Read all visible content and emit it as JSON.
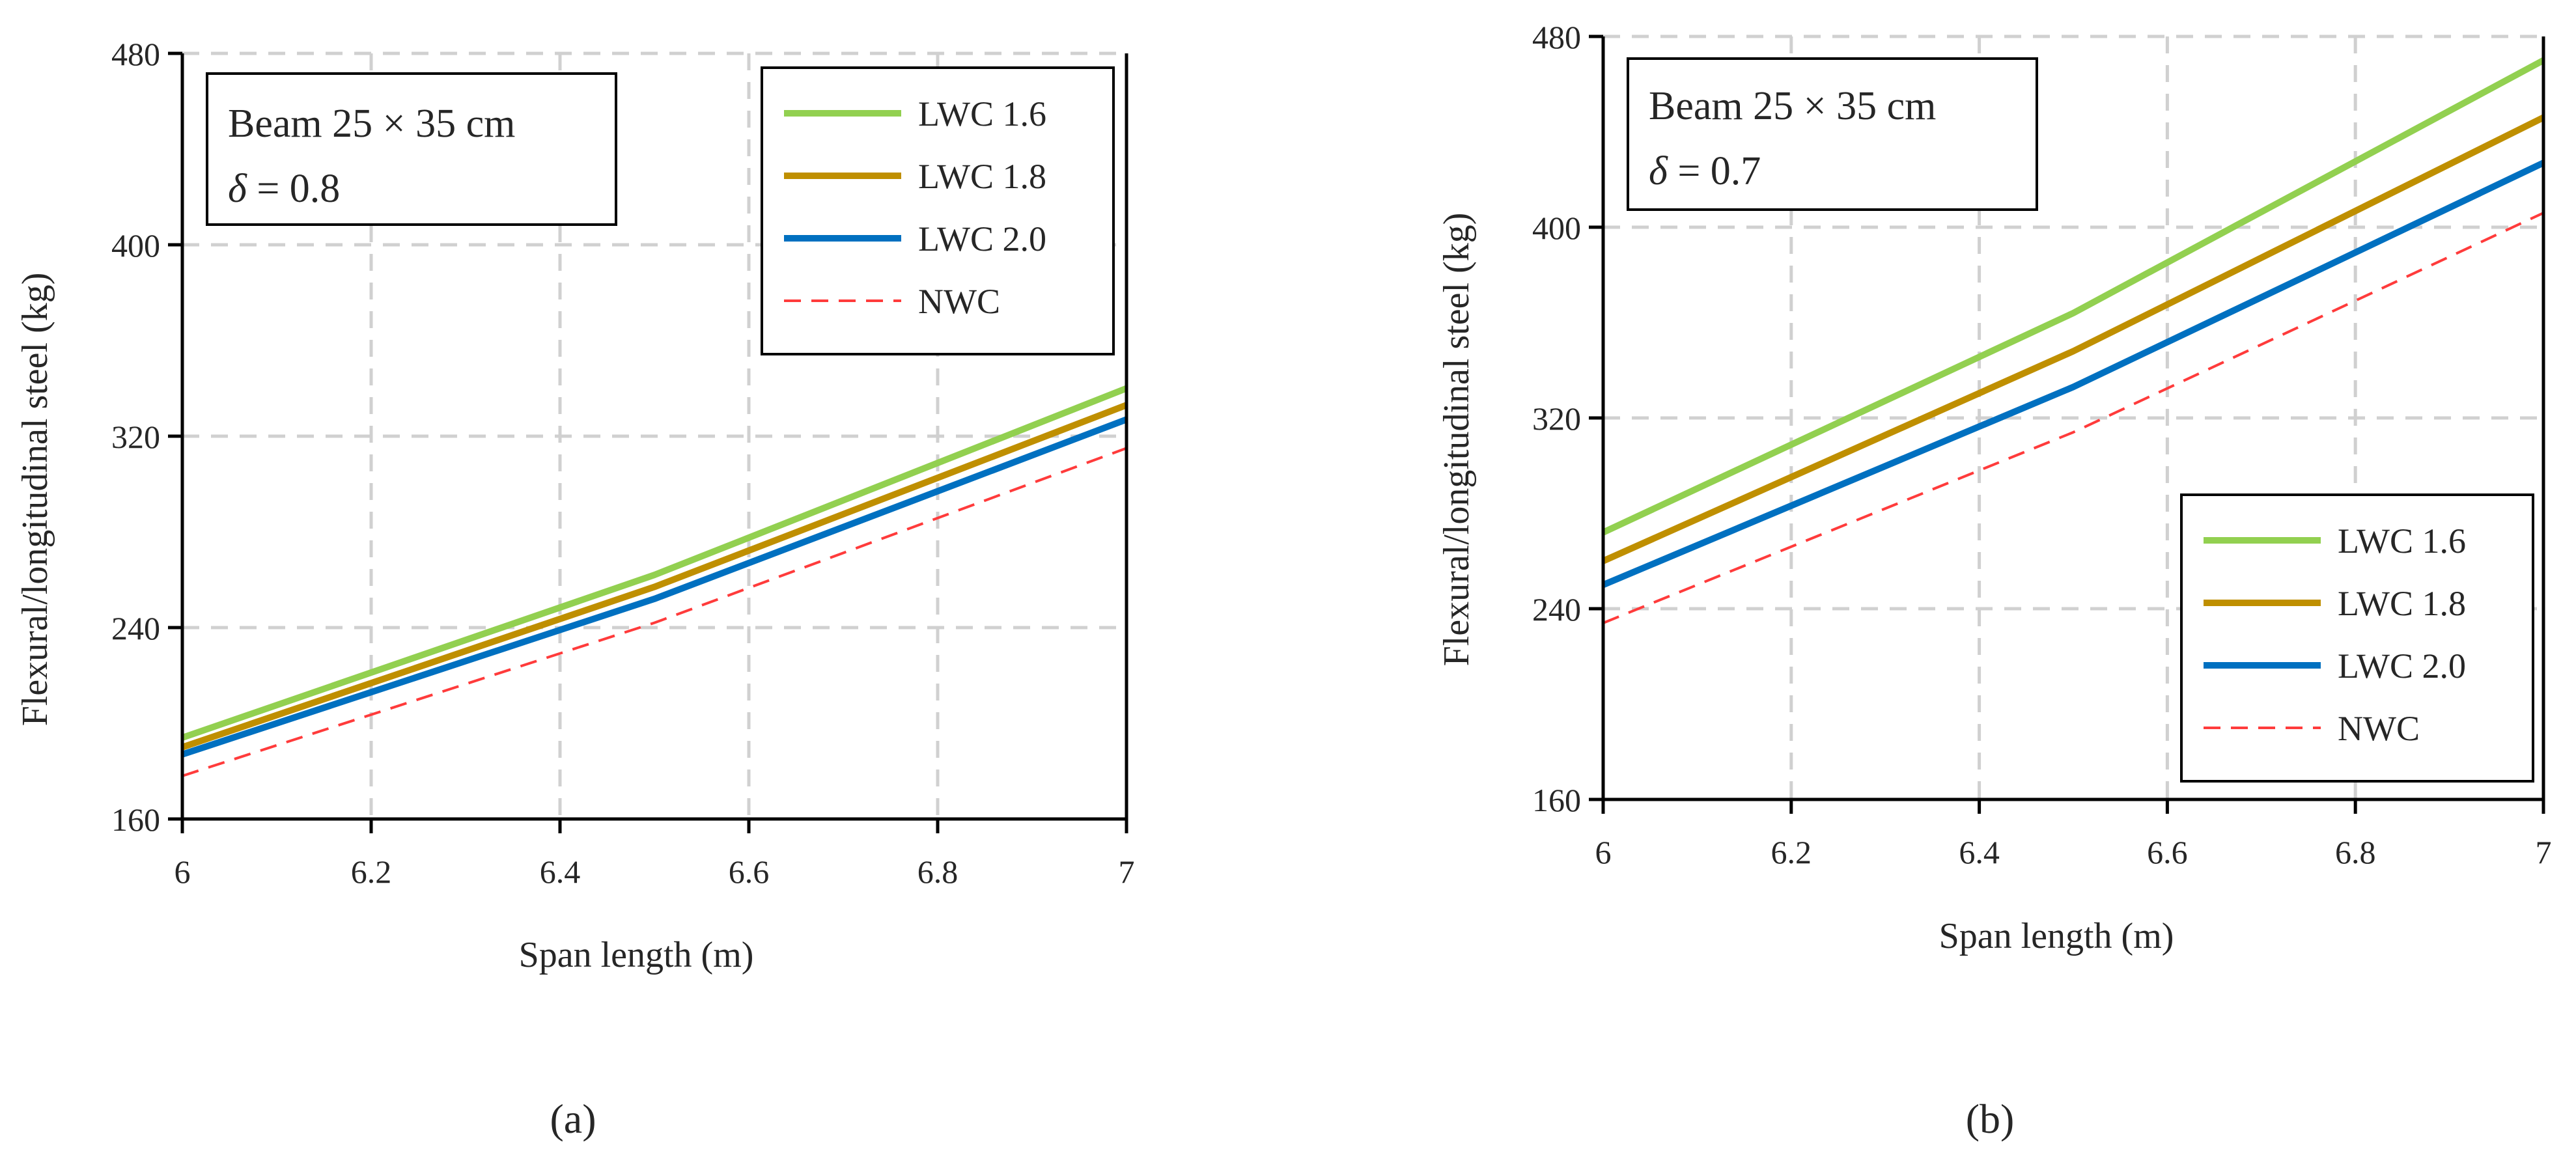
{
  "chart_data": [
    {
      "type": "line",
      "panel": "(a)",
      "caption": "(a)",
      "xlabel": "Span length (m)",
      "ylabel": "Flexural/longitudinal steel (kg)",
      "x": [
        6,
        6.5,
        7
      ],
      "xticks": [
        "6",
        "6.2",
        "6.4",
        "6.6",
        "6.8",
        "7"
      ],
      "xtick_values": [
        6,
        6.2,
        6.4,
        6.6,
        6.8,
        7
      ],
      "yticks": [
        "160",
        "240",
        "320",
        "400",
        "480"
      ],
      "ytick_values": [
        160,
        240,
        320,
        400,
        480
      ],
      "xlim": [
        6,
        7
      ],
      "ylim": [
        160,
        480
      ],
      "grid": true,
      "annotation": {
        "line1": "Beam 25 × 35 cm",
        "delta_symbol": "δ",
        "delta_text": " = 0.8"
      },
      "legend_position": "top-right",
      "series": [
        {
          "name": "LWC 1.6",
          "color": "#92D050",
          "dashed": false,
          "values": [
            194,
            262,
            340
          ]
        },
        {
          "name": "LWC 1.8",
          "color": "#BF8F00",
          "dashed": false,
          "values": [
            190,
            257,
            333
          ]
        },
        {
          "name": "LWC 2.0",
          "color": "#0070C0",
          "dashed": false,
          "values": [
            187,
            252,
            327
          ]
        },
        {
          "name": "NWC",
          "color": "#FF3B3B",
          "dashed": true,
          "values": [
            178,
            242,
            315
          ]
        }
      ]
    },
    {
      "type": "line",
      "panel": "(b)",
      "caption": "(b)",
      "xlabel": "Span length (m)",
      "ylabel": "Flexural/longitudinal steel (kg)",
      "x": [
        6,
        6.5,
        7
      ],
      "xticks": [
        "6",
        "6.2",
        "6.4",
        "6.6",
        "6.8",
        "7"
      ],
      "xtick_values": [
        6,
        6.2,
        6.4,
        6.6,
        6.8,
        7
      ],
      "yticks": [
        "160",
        "240",
        "320",
        "400",
        "480"
      ],
      "ytick_values": [
        160,
        240,
        320,
        400,
        480
      ],
      "xlim": [
        6,
        7
      ],
      "ylim": [
        160,
        480
      ],
      "grid": true,
      "annotation": {
        "line1": "Beam 25 × 35 cm",
        "delta_symbol": "δ",
        "delta_text": " = 0.7"
      },
      "legend_position": "bottom-right",
      "series": [
        {
          "name": "LWC 1.6",
          "color": "#92D050",
          "dashed": false,
          "values": [
            272,
            364,
            470
          ]
        },
        {
          "name": "LWC 1.8",
          "color": "#BF8F00",
          "dashed": false,
          "values": [
            260,
            348,
            446
          ]
        },
        {
          "name": "LWC 2.0",
          "color": "#0070C0",
          "dashed": false,
          "values": [
            250,
            333,
            427
          ]
        },
        {
          "name": "NWC",
          "color": "#FF3B3B",
          "dashed": true,
          "values": [
            234,
            314,
            406
          ]
        }
      ]
    }
  ]
}
